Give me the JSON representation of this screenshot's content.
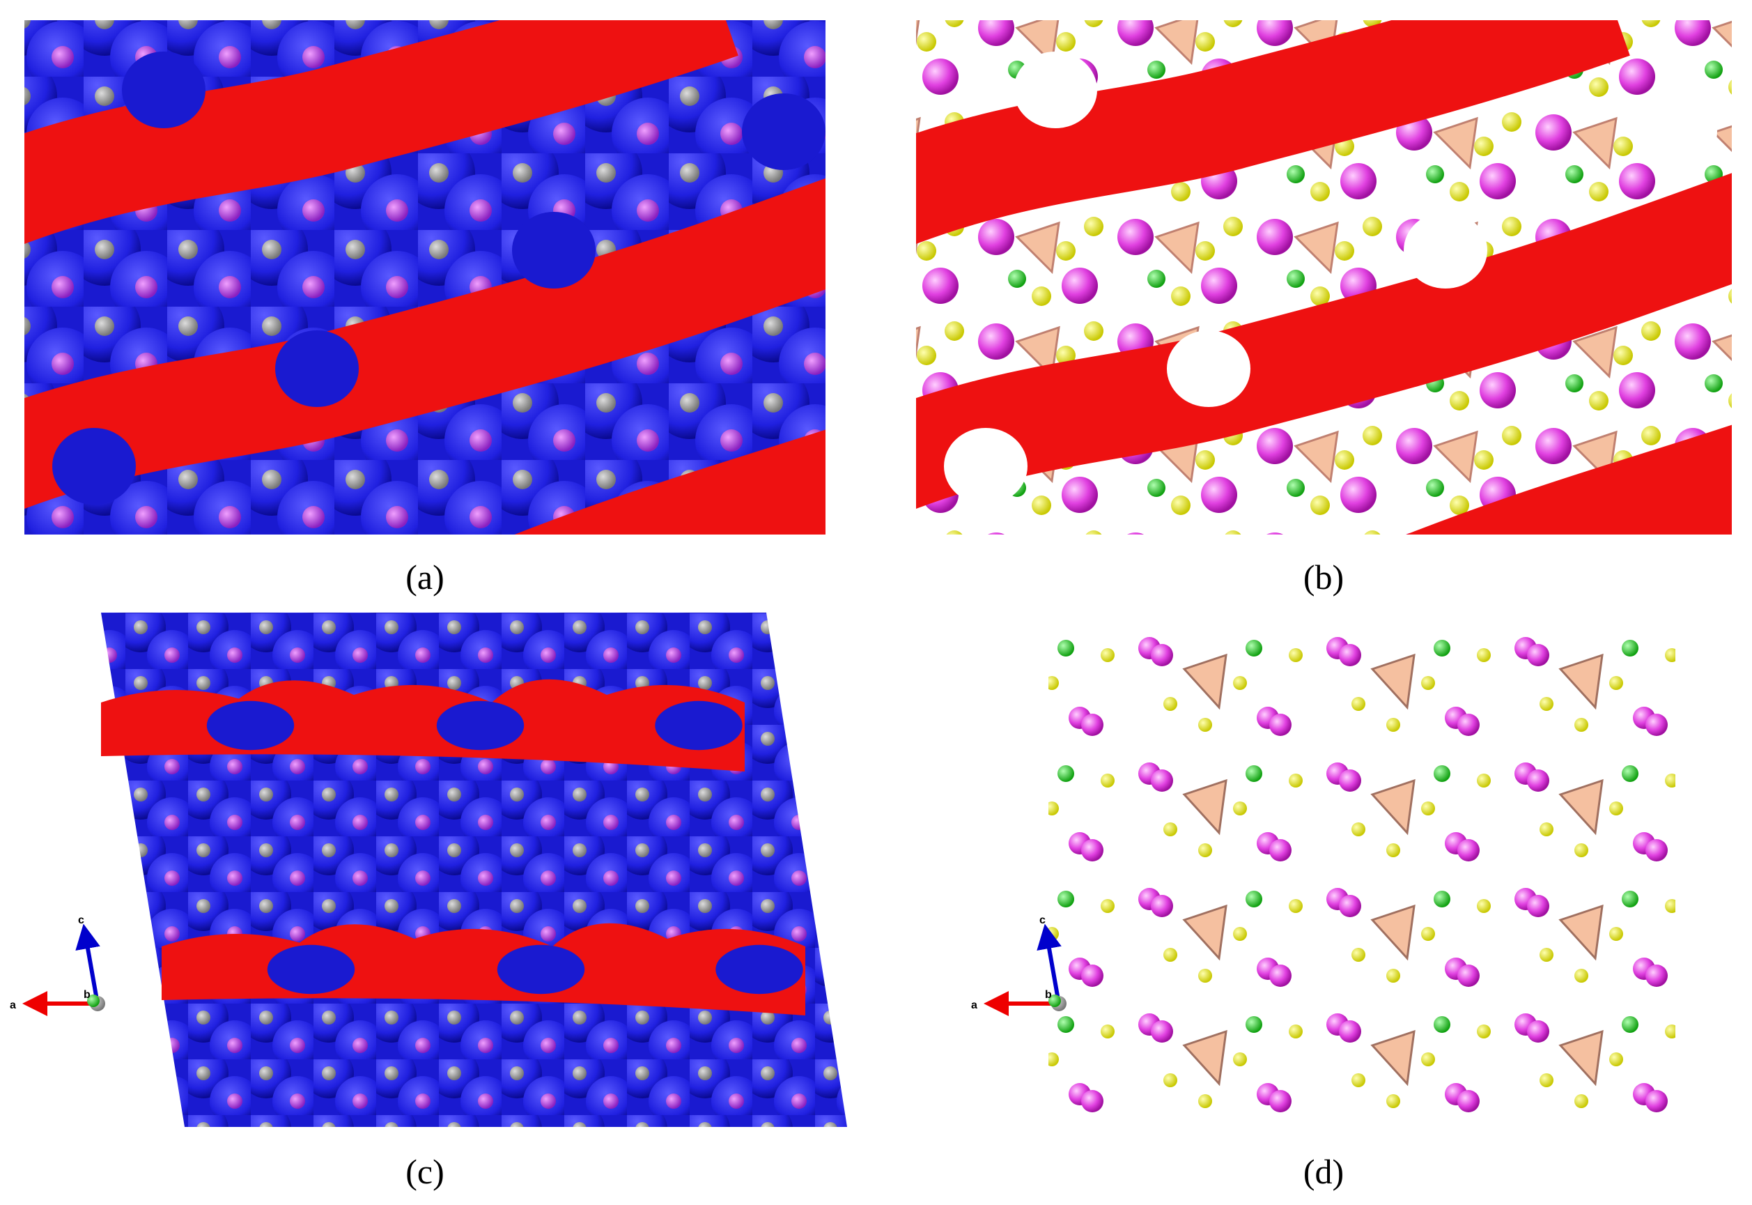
{
  "panels": [
    {
      "caption": "(a)"
    },
    {
      "caption": "(b)"
    },
    {
      "caption": "(c)",
      "axes": {
        "c": "c",
        "a": "a",
        "b": "b"
      }
    },
    {
      "caption": "(d)",
      "axes": {
        "c": "c",
        "a": "a",
        "b": "b"
      }
    }
  ]
}
